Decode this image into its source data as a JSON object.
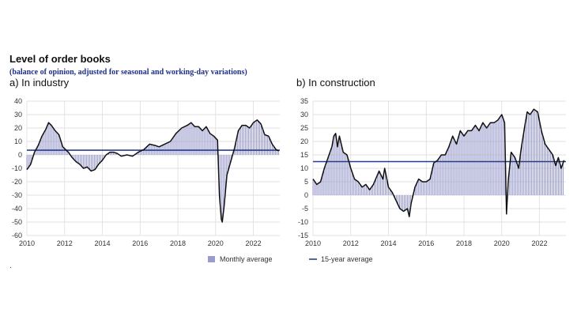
{
  "title": "Level of order books",
  "subtitle": "(balance of opinion, adjusted for seasonal and working-day variations)",
  "footnote": ".",
  "colors": {
    "bars": "#9a9ccc",
    "monthly_line": "#111111",
    "average_line": "#283c8c",
    "grid": "#d9d9d9"
  },
  "chart_data": [
    {
      "type": "line",
      "panel_title": "a) In industry",
      "xlabel": "",
      "ylabel": "",
      "x_ticks": [
        "2010",
        "2012",
        "2014",
        "2016",
        "2018",
        "2020",
        "2022"
      ],
      "xlim": [
        2010,
        2023.4
      ],
      "ylim": [
        -60,
        40
      ],
      "y_ticks": [
        40,
        30,
        20,
        10,
        0,
        -10,
        -20,
        -30,
        -40,
        -50,
        -60
      ],
      "legend": "Monthly average",
      "series": [
        {
          "name": "Monthly average",
          "render": "bars+line",
          "points": [
            [
              2010.0,
              -11
            ],
            [
              2010.2,
              -7
            ],
            [
              2010.4,
              2
            ],
            [
              2010.6,
              7
            ],
            [
              2010.8,
              14
            ],
            [
              2011.0,
              19
            ],
            [
              2011.15,
              24
            ],
            [
              2011.3,
              22
            ],
            [
              2011.5,
              18
            ],
            [
              2011.7,
              15
            ],
            [
              2011.9,
              6
            ],
            [
              2012.2,
              2
            ],
            [
              2012.4,
              -2
            ],
            [
              2012.6,
              -5
            ],
            [
              2012.8,
              -7
            ],
            [
              2013.0,
              -10
            ],
            [
              2013.2,
              -9
            ],
            [
              2013.4,
              -12
            ],
            [
              2013.6,
              -11
            ],
            [
              2013.8,
              -7
            ],
            [
              2014.0,
              -4
            ],
            [
              2014.2,
              0
            ],
            [
              2014.4,
              2
            ],
            [
              2014.6,
              2
            ],
            [
              2014.8,
              1
            ],
            [
              2015.0,
              -1
            ],
            [
              2015.3,
              0
            ],
            [
              2015.6,
              -1
            ],
            [
              2015.9,
              2
            ],
            [
              2016.2,
              4
            ],
            [
              2016.5,
              8
            ],
            [
              2016.8,
              7
            ],
            [
              2017.0,
              6
            ],
            [
              2017.3,
              8
            ],
            [
              2017.6,
              10
            ],
            [
              2017.9,
              16
            ],
            [
              2018.2,
              20
            ],
            [
              2018.5,
              22
            ],
            [
              2018.7,
              24
            ],
            [
              2018.9,
              21
            ],
            [
              2019.1,
              21
            ],
            [
              2019.3,
              18
            ],
            [
              2019.5,
              21
            ],
            [
              2019.7,
              16
            ],
            [
              2019.9,
              14
            ],
            [
              2020.1,
              11
            ],
            [
              2020.2,
              -30
            ],
            [
              2020.3,
              -48
            ],
            [
              2020.35,
              -50
            ],
            [
              2020.45,
              -38
            ],
            [
              2020.6,
              -15
            ],
            [
              2020.8,
              -5
            ],
            [
              2021.0,
              5
            ],
            [
              2021.2,
              18
            ],
            [
              2021.4,
              22
            ],
            [
              2021.6,
              22
            ],
            [
              2021.8,
              20
            ],
            [
              2022.0,
              24
            ],
            [
              2022.2,
              26
            ],
            [
              2022.4,
              23
            ],
            [
              2022.6,
              15
            ],
            [
              2022.8,
              14
            ],
            [
              2023.0,
              8
            ],
            [
              2023.2,
              4
            ],
            [
              2023.35,
              3
            ]
          ]
        },
        {
          "name": "15-year average",
          "render": "hline",
          "value": 3.5
        }
      ]
    },
    {
      "type": "line",
      "panel_title": "b) In construction",
      "xlabel": "",
      "ylabel": "",
      "x_ticks": [
        "2010",
        "2012",
        "2014",
        "2016",
        "2018",
        "2020",
        "2022"
      ],
      "xlim": [
        2010,
        2023.4
      ],
      "ylim": [
        -15,
        35
      ],
      "y_ticks": [
        35,
        30,
        25,
        20,
        15,
        10,
        5,
        0,
        -5,
        -10,
        -15
      ],
      "legend": "15-year average",
      "series": [
        {
          "name": "Monthly average",
          "render": "bars+line",
          "points": [
            [
              2010.0,
              6
            ],
            [
              2010.2,
              4
            ],
            [
              2010.4,
              5
            ],
            [
              2010.6,
              10
            ],
            [
              2010.8,
              14
            ],
            [
              2011.0,
              18
            ],
            [
              2011.1,
              22
            ],
            [
              2011.2,
              23
            ],
            [
              2011.3,
              18
            ],
            [
              2011.4,
              22
            ],
            [
              2011.6,
              16
            ],
            [
              2011.8,
              15
            ],
            [
              2012.0,
              10
            ],
            [
              2012.2,
              6
            ],
            [
              2012.4,
              5
            ],
            [
              2012.6,
              3
            ],
            [
              2012.8,
              4
            ],
            [
              2013.0,
              2
            ],
            [
              2013.2,
              4
            ],
            [
              2013.5,
              9
            ],
            [
              2013.7,
              6
            ],
            [
              2013.8,
              10
            ],
            [
              2014.0,
              3
            ],
            [
              2014.2,
              1
            ],
            [
              2014.4,
              -2
            ],
            [
              2014.6,
              -5
            ],
            [
              2014.8,
              -6
            ],
            [
              2015.0,
              -5
            ],
            [
              2015.1,
              -8
            ],
            [
              2015.2,
              -3
            ],
            [
              2015.4,
              3
            ],
            [
              2015.6,
              6
            ],
            [
              2015.8,
              5
            ],
            [
              2016.0,
              5
            ],
            [
              2016.2,
              6
            ],
            [
              2016.4,
              12
            ],
            [
              2016.6,
              13
            ],
            [
              2016.8,
              15
            ],
            [
              2017.0,
              15
            ],
            [
              2017.2,
              18
            ],
            [
              2017.4,
              22
            ],
            [
              2017.6,
              19
            ],
            [
              2017.8,
              24
            ],
            [
              2018.0,
              22
            ],
            [
              2018.2,
              24
            ],
            [
              2018.4,
              24
            ],
            [
              2018.6,
              26
            ],
            [
              2018.8,
              24
            ],
            [
              2019.0,
              27
            ],
            [
              2019.2,
              25
            ],
            [
              2019.4,
              27
            ],
            [
              2019.6,
              27
            ],
            [
              2019.8,
              28
            ],
            [
              2020.0,
              30
            ],
            [
              2020.15,
              27
            ],
            [
              2020.25,
              -7
            ],
            [
              2020.35,
              6
            ],
            [
              2020.5,
              16
            ],
            [
              2020.7,
              14
            ],
            [
              2020.9,
              10
            ],
            [
              2021.0,
              16
            ],
            [
              2021.2,
              25
            ],
            [
              2021.35,
              31
            ],
            [
              2021.5,
              30
            ],
            [
              2021.7,
              32
            ],
            [
              2021.9,
              31
            ],
            [
              2022.1,
              24
            ],
            [
              2022.3,
              19
            ],
            [
              2022.5,
              17
            ],
            [
              2022.7,
              15
            ],
            [
              2022.85,
              11
            ],
            [
              2023.0,
              14
            ],
            [
              2023.15,
              10
            ],
            [
              2023.3,
              13
            ]
          ]
        },
        {
          "name": "15-year average",
          "render": "hline",
          "value": 12.5
        }
      ]
    }
  ]
}
